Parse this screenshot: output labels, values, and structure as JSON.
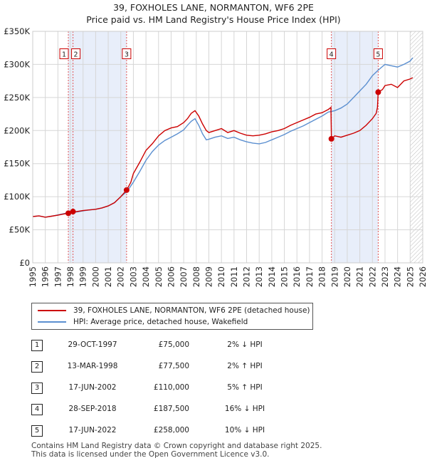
{
  "chart_data": {
    "type": "line",
    "title": "39, FOXHOLES LANE, NORMANTON, WF6 2PE",
    "subtitle": "Price paid vs. HM Land Registry's House Price Index (HPI)",
    "xlim": [
      1995,
      2026
    ],
    "ylim": [
      0,
      350000
    ],
    "y_ticks": [
      0,
      50000,
      100000,
      150000,
      200000,
      250000,
      300000,
      350000
    ],
    "y_tick_labels": [
      "£0",
      "£50K",
      "£100K",
      "£150K",
      "£200K",
      "£250K",
      "£300K",
      "£350K"
    ],
    "x_ticks": [
      1995,
      1996,
      1997,
      1998,
      1999,
      2000,
      2001,
      2002,
      2003,
      2004,
      2005,
      2006,
      2007,
      2008,
      2009,
      2010,
      2011,
      2012,
      2013,
      2014,
      2015,
      2016,
      2017,
      2018,
      2019,
      2020,
      2021,
      2022,
      2023,
      2024,
      2025,
      2026
    ],
    "x_tick_labels": [
      "1995",
      "1996",
      "1997",
      "1998",
      "1999",
      "2000",
      "2001",
      "2002",
      "2003",
      "2004",
      "2005",
      "2006",
      "2007",
      "2008",
      "2009",
      "2010",
      "2011",
      "2012",
      "2013",
      "2014",
      "2015",
      "2016",
      "2017",
      "2018",
      "2019",
      "2020",
      "2021",
      "2022",
      "2023",
      "2024",
      "2025",
      "2026"
    ],
    "grid": true,
    "shaded_regions": [
      [
        1997.83,
        2002.46
      ],
      [
        2018.74,
        2022.46
      ]
    ],
    "hatched_from": 2025.0,
    "series": [
      {
        "name": "39, FOXHOLES LANE, NORMANTON, WF6 2PE (detached house)",
        "color": "#cc0000",
        "x": [
          1995.0,
          1995.5,
          1996.0,
          1996.5,
          1997.0,
          1997.5,
          1997.83,
          1998.0,
          1998.2,
          1998.5,
          1999.0,
          1999.5,
          2000.0,
          2000.5,
          2001.0,
          2001.5,
          2002.0,
          2002.46,
          2002.8,
          2003.0,
          2003.5,
          2004.0,
          2004.5,
          2005.0,
          2005.5,
          2006.0,
          2006.5,
          2007.0,
          2007.3,
          2007.6,
          2007.9,
          2008.2,
          2008.5,
          2008.8,
          2009.0,
          2009.5,
          2010.0,
          2010.5,
          2011.0,
          2011.5,
          2012.0,
          2012.5,
          2013.0,
          2013.5,
          2014.0,
          2014.5,
          2015.0,
          2015.5,
          2016.0,
          2016.5,
          2017.0,
          2017.5,
          2018.0,
          2018.5,
          2018.7,
          2018.74,
          2019.0,
          2019.5,
          2020.0,
          2020.5,
          2021.0,
          2021.5,
          2022.0,
          2022.3,
          2022.4,
          2022.46,
          2022.8,
          2023.0,
          2023.5,
          2024.0,
          2024.5,
          2025.0,
          2025.2
        ],
        "y": [
          70000,
          71000,
          69000,
          70500,
          72000,
          74000,
          75000,
          77500,
          77000,
          77500,
          79000,
          80000,
          81000,
          83000,
          86000,
          91000,
          100000,
          110000,
          122000,
          135000,
          152000,
          170000,
          180000,
          192000,
          200000,
          204000,
          206000,
          212000,
          218000,
          226000,
          230000,
          222000,
          210000,
          200000,
          197000,
          200000,
          203000,
          197000,
          200000,
          196000,
          193000,
          192000,
          193000,
          195000,
          198000,
          200000,
          203000,
          208000,
          212000,
          216000,
          220000,
          225000,
          227000,
          232000,
          235000,
          187500,
          192000,
          190000,
          193000,
          196000,
          200000,
          208000,
          218000,
          226000,
          235000,
          258000,
          262000,
          268000,
          270000,
          265000,
          275000,
          278000,
          280000
        ]
      },
      {
        "name": "HPI: Average price, detached house, Wakefield",
        "color": "#5b8fd0",
        "x": [
          1995.0,
          1995.5,
          1996.0,
          1996.5,
          1997.0,
          1997.5,
          1998.0,
          1998.5,
          1999.0,
          1999.5,
          2000.0,
          2000.5,
          2001.0,
          2001.5,
          2002.0,
          2002.5,
          2003.0,
          2003.5,
          2004.0,
          2004.5,
          2005.0,
          2005.5,
          2006.0,
          2006.5,
          2007.0,
          2007.3,
          2007.6,
          2007.9,
          2008.2,
          2008.5,
          2008.8,
          2009.0,
          2009.5,
          2010.0,
          2010.5,
          2011.0,
          2011.5,
          2012.0,
          2012.5,
          2013.0,
          2013.5,
          2014.0,
          2014.5,
          2015.0,
          2015.5,
          2016.0,
          2016.5,
          2017.0,
          2017.5,
          2018.0,
          2018.5,
          2019.0,
          2019.5,
          2020.0,
          2020.5,
          2021.0,
          2021.5,
          2022.0,
          2022.5,
          2023.0,
          2023.5,
          2024.0,
          2024.5,
          2025.0,
          2025.2
        ],
        "y": [
          70000,
          71000,
          69000,
          70500,
          72500,
          74500,
          76000,
          77000,
          78500,
          80000,
          81000,
          83000,
          86000,
          91000,
          100000,
          108000,
          122000,
          138000,
          155000,
          168000,
          178000,
          185000,
          190000,
          195000,
          201000,
          208000,
          214000,
          218000,
          208000,
          195000,
          186000,
          187000,
          190000,
          192000,
          188000,
          190000,
          186000,
          183000,
          181000,
          180000,
          182000,
          186000,
          190000,
          194000,
          199000,
          203000,
          207000,
          212000,
          217000,
          222000,
          228000,
          230000,
          234000,
          240000,
          250000,
          260000,
          270000,
          283000,
          292000,
          300000,
          298000,
          296000,
          300000,
          305000,
          310000
        ]
      }
    ],
    "transactions": [
      {
        "num": "1",
        "x": 1997.83,
        "y": 75000
      },
      {
        "num": "2",
        "x": 1998.2,
        "y": 77500
      },
      {
        "num": "3",
        "x": 2002.46,
        "y": 110000
      },
      {
        "num": "4",
        "x": 2018.74,
        "y": 187500
      },
      {
        "num": "5",
        "x": 2022.46,
        "y": 258000
      }
    ]
  },
  "legend": {
    "property": "39, FOXHOLES LANE, NORMANTON, WF6 2PE (detached house)",
    "hpi": "HPI: Average price, detached house, Wakefield"
  },
  "table": [
    {
      "num": "1",
      "date": "29-OCT-1997",
      "price": "£75,000",
      "hpi": "2% ↓ HPI"
    },
    {
      "num": "2",
      "date": "13-MAR-1998",
      "price": "£77,500",
      "hpi": "2% ↑ HPI"
    },
    {
      "num": "3",
      "date": "17-JUN-2002",
      "price": "£110,000",
      "hpi": "5% ↑ HPI"
    },
    {
      "num": "4",
      "date": "28-SEP-2018",
      "price": "£187,500",
      "hpi": "16% ↓ HPI"
    },
    {
      "num": "5",
      "date": "17-JUN-2022",
      "price": "£258,000",
      "hpi": "10% ↓ HPI"
    }
  ],
  "footer": {
    "line1": "Contains HM Land Registry data © Crown copyright and database right 2025.",
    "line2": "This data is licensed under the Open Government Licence v3.0."
  }
}
